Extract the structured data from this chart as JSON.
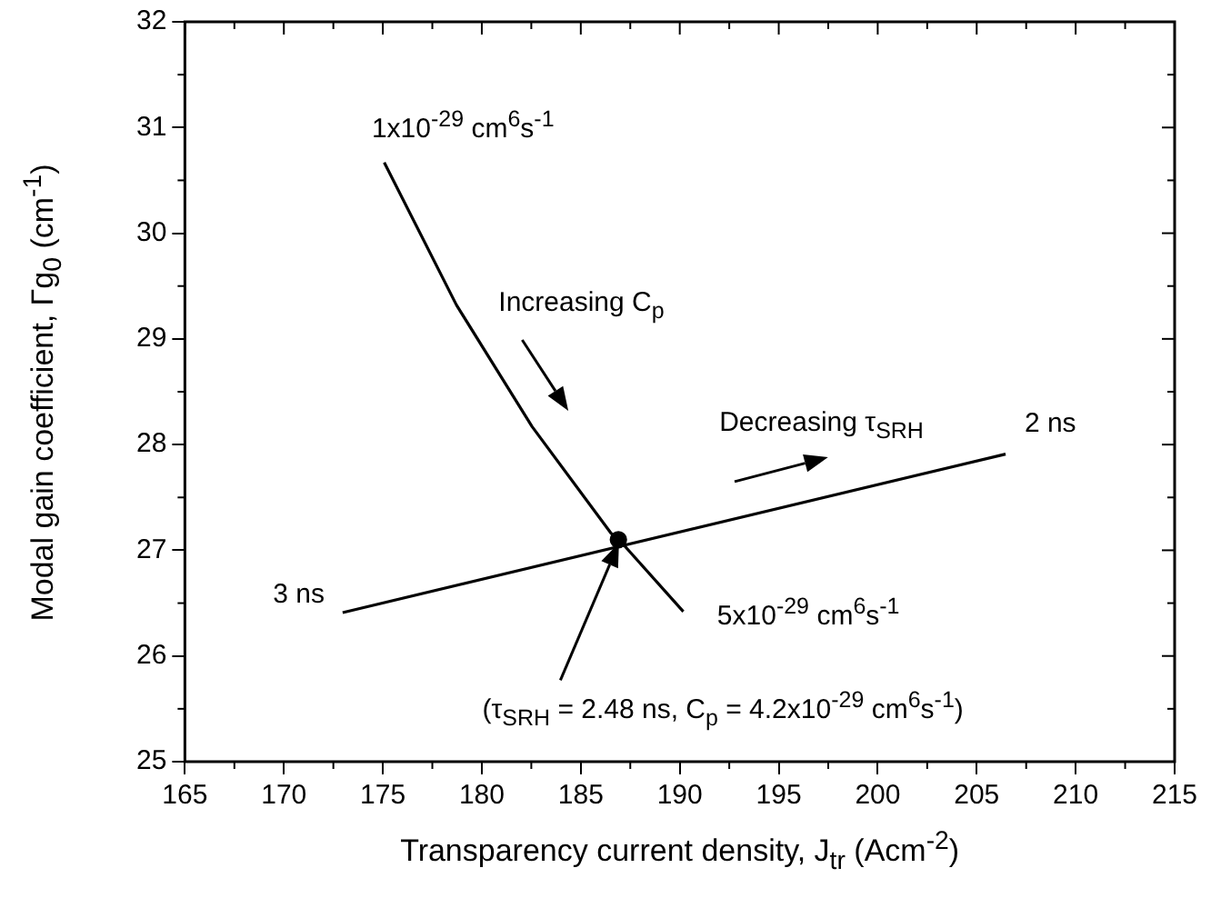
{
  "chart_data": {
    "type": "line",
    "xlabel": "Transparency current density, J$_{tr}$ (Acm$^{-2}$)",
    "ylabel": "Modal gain coefficient, Γg$_{0}$ (cm$^{-1}$)",
    "xlim": [
      165,
      215
    ],
    "xticks": [
      165,
      170,
      175,
      180,
      185,
      190,
      195,
      200,
      205,
      210,
      215
    ],
    "ylim": [
      25,
      32
    ],
    "yticks": [
      25,
      26,
      27,
      28,
      29,
      30,
      31,
      32
    ],
    "grid": false,
    "legend": false,
    "series": [
      {
        "color": "#000000",
        "marker": "none",
        "x": [
          175.07,
          178.72,
          182.54,
          186.53,
          186.93,
          190.18
        ],
        "values": [
          30.67,
          29.32,
          28.17,
          27.16,
          27.1,
          26.42
        ]
      },
      {
        "color": "#000000",
        "marker": "none",
        "x": [
          172.97,
          206.46
        ],
        "values": [
          26.41,
          27.91
        ]
      },
      {
        "type": "scatter",
        "color": "#000000",
        "marker": "circle",
        "x": [
          186.9
        ],
        "values": [
          27.1
        ]
      }
    ],
    "annotations": [
      "1x10$^{-29}$ cm$^{6}$s$^{-1}$",
      "Increasing C$_{p}$",
      "Decreasing τ$_{SRH}$",
      "2 ns",
      "3 ns",
      "5x10$^{-29}$ cm$^{6}$s$^{-1}$",
      "(τ$_{SRH}$ = 2.48 ns, C$_{p}$ = 4.2x10$^{-29}$ cm$^{6}$s$^{-1}$)"
    ]
  }
}
